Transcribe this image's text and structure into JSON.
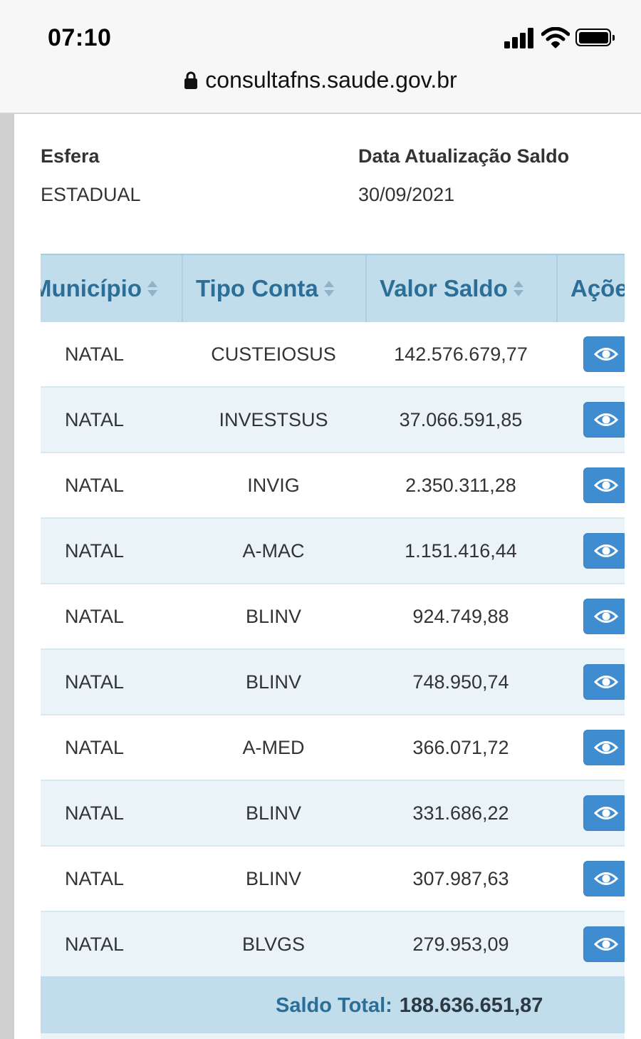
{
  "status_bar": {
    "time": "07:10",
    "signal_icon": "cellular-signal-icon",
    "wifi_icon": "wifi-icon",
    "battery_icon": "battery-icon"
  },
  "address_bar": {
    "lock_icon": "lock-icon",
    "url": "consultafns.saude.gov.br"
  },
  "info": {
    "esfera_label": "Esfera",
    "esfera_value": "ESTADUAL",
    "data_label": "Data Atualização Saldo",
    "data_value": "30/09/2021"
  },
  "table": {
    "headers": {
      "municipio": "Município",
      "tipo_conta": "Tipo Conta",
      "valor_saldo": "Valor Saldo",
      "acoes": "Ações"
    },
    "sort_icon": "sort-icon",
    "action_icon": "eye-icon",
    "rows": [
      {
        "municipio": "NATAL",
        "tipo_conta": "CUSTEIOSUS",
        "valor_saldo": "142.576.679,77"
      },
      {
        "municipio": "NATAL",
        "tipo_conta": "INVESTSUS",
        "valor_saldo": "37.066.591,85"
      },
      {
        "municipio": "NATAL",
        "tipo_conta": "INVIG",
        "valor_saldo": "2.350.311,28"
      },
      {
        "municipio": "NATAL",
        "tipo_conta": "A-MAC",
        "valor_saldo": "1.151.416,44"
      },
      {
        "municipio": "NATAL",
        "tipo_conta": "BLINV",
        "valor_saldo": "924.749,88"
      },
      {
        "municipio": "NATAL",
        "tipo_conta": "BLINV",
        "valor_saldo": "748.950,74"
      },
      {
        "municipio": "NATAL",
        "tipo_conta": "A-MED",
        "valor_saldo": "366.071,72"
      },
      {
        "municipio": "NATAL",
        "tipo_conta": "BLINV",
        "valor_saldo": "331.686,22"
      },
      {
        "municipio": "NATAL",
        "tipo_conta": "BLINV",
        "valor_saldo": "307.987,63"
      },
      {
        "municipio": "NATAL",
        "tipo_conta": "BLVGS",
        "valor_saldo": "279.953,09"
      }
    ],
    "total_label": "Saldo Total:",
    "total_value": "188.636.651,87"
  },
  "colors": {
    "header_bg": "#c1dcea",
    "header_text": "#2b6e98",
    "row_alt_bg": "#e9f3f8",
    "button_bg": "#3f8dd0"
  }
}
